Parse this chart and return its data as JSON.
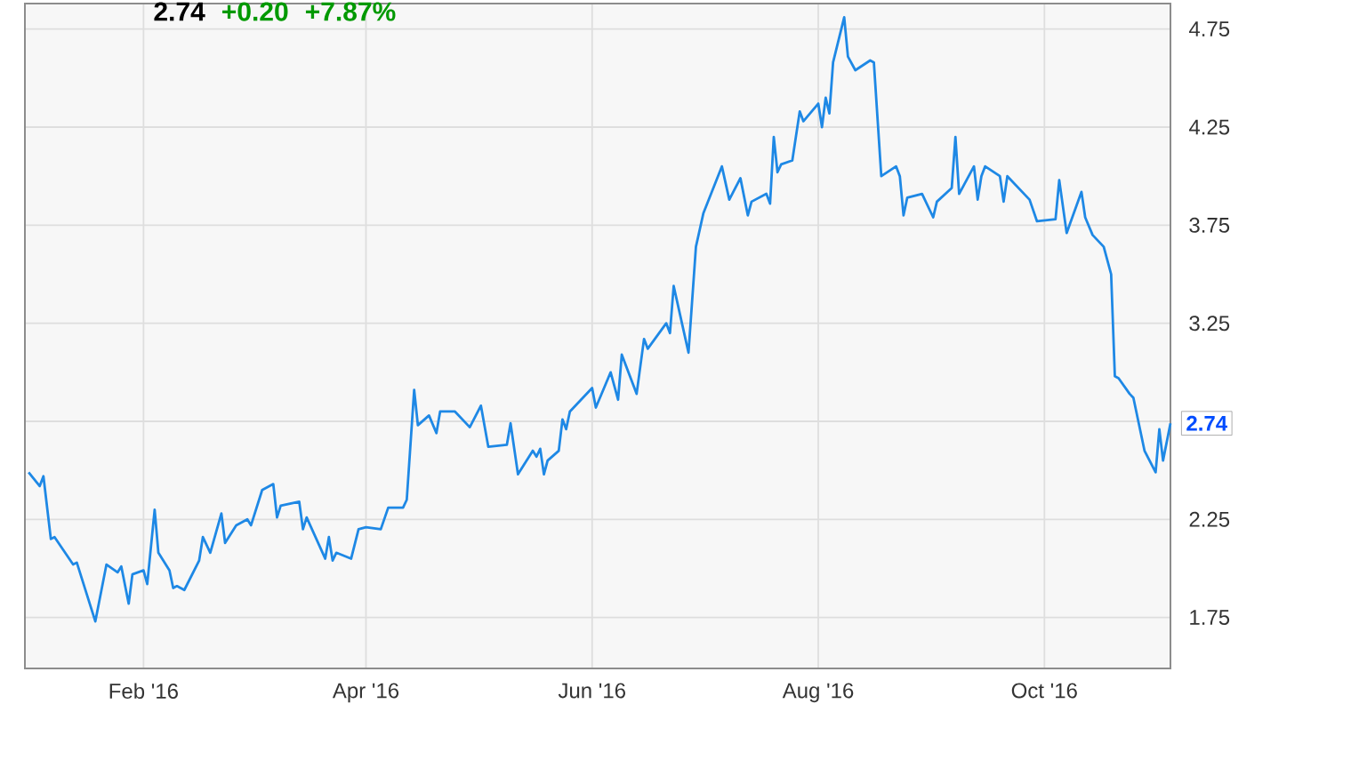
{
  "chart_data": {
    "type": "line",
    "x": [
      "2016-01-01",
      "2016-01-04",
      "2016-01-05",
      "2016-01-07",
      "2016-01-08",
      "2016-01-13",
      "2016-01-14",
      "2016-01-19",
      "2016-01-22",
      "2016-01-25",
      "2016-01-26",
      "2016-01-28",
      "2016-01-29",
      "2016-02-01",
      "2016-02-02",
      "2016-02-04",
      "2016-02-05",
      "2016-02-08",
      "2016-02-09",
      "2016-02-10",
      "2016-02-12",
      "2016-02-16",
      "2016-02-17",
      "2016-02-19",
      "2016-02-22",
      "2016-02-23",
      "2016-02-26",
      "2016-02-29",
      "2016-03-01",
      "2016-03-04",
      "2016-03-07",
      "2016-03-08",
      "2016-03-09",
      "2016-03-14",
      "2016-03-15",
      "2016-03-16",
      "2016-03-21",
      "2016-03-22",
      "2016-03-23",
      "2016-03-24",
      "2016-03-28",
      "2016-03-30",
      "2016-04-01",
      "2016-04-05",
      "2016-04-07",
      "2016-04-11",
      "2016-04-12",
      "2016-04-14",
      "2016-04-15",
      "2016-04-18",
      "2016-04-20",
      "2016-04-21",
      "2016-04-25",
      "2016-04-29",
      "2016-05-02",
      "2016-05-04",
      "2016-05-09",
      "2016-05-10",
      "2016-05-12",
      "2016-05-16",
      "2016-05-17",
      "2016-05-18",
      "2016-05-19",
      "2016-05-20",
      "2016-05-23",
      "2016-05-24",
      "2016-05-25",
      "2016-05-26",
      "2016-06-01",
      "2016-06-02",
      "2016-06-06",
      "2016-06-08",
      "2016-06-09",
      "2016-06-13",
      "2016-06-15",
      "2016-06-16",
      "2016-06-21",
      "2016-06-22",
      "2016-06-23",
      "2016-06-27",
      "2016-06-29",
      "2016-07-01",
      "2016-07-06",
      "2016-07-08",
      "2016-07-11",
      "2016-07-13",
      "2016-07-14",
      "2016-07-18",
      "2016-07-19",
      "2016-07-20",
      "2016-07-21",
      "2016-07-22",
      "2016-07-25",
      "2016-07-27",
      "2016-07-28",
      "2016-08-01",
      "2016-08-02",
      "2016-08-03",
      "2016-08-04",
      "2016-08-05",
      "2016-08-08",
      "2016-08-09",
      "2016-08-11",
      "2016-08-15",
      "2016-08-16",
      "2016-08-18",
      "2016-08-22",
      "2016-08-23",
      "2016-08-24",
      "2016-08-25",
      "2016-08-29",
      "2016-09-01",
      "2016-09-02",
      "2016-09-06",
      "2016-09-07",
      "2016-09-08",
      "2016-09-12",
      "2016-09-13",
      "2016-09-14",
      "2016-09-15",
      "2016-09-19",
      "2016-09-20",
      "2016-09-21",
      "2016-09-27",
      "2016-09-29",
      "2016-10-04",
      "2016-10-05",
      "2016-10-07",
      "2016-10-11",
      "2016-10-12",
      "2016-10-14",
      "2016-10-17",
      "2016-10-19",
      "2016-10-20",
      "2016-10-21",
      "2016-10-24",
      "2016-10-25",
      "2016-10-28",
      "2016-10-31",
      "2016-11-01",
      "2016-11-02",
      "2016-11-04"
    ],
    "series": [
      {
        "color": "#1e88e5",
        "values": [
          2.49,
          2.42,
          2.47,
          2.15,
          2.16,
          2.02,
          2.03,
          1.73,
          2.02,
          1.98,
          2.01,
          1.82,
          1.97,
          1.99,
          1.92,
          2.3,
          2.08,
          1.99,
          1.9,
          1.91,
          1.89,
          2.04,
          2.16,
          2.08,
          2.28,
          2.13,
          2.22,
          2.25,
          2.22,
          2.4,
          2.43,
          2.26,
          2.32,
          2.34,
          2.2,
          2.26,
          2.05,
          2.16,
          2.04,
          2.08,
          2.05,
          2.2,
          2.21,
          2.2,
          2.31,
          2.31,
          2.35,
          2.91,
          2.73,
          2.78,
          2.69,
          2.8,
          2.8,
          2.72,
          2.83,
          2.62,
          2.63,
          2.74,
          2.48,
          2.6,
          2.57,
          2.61,
          2.48,
          2.55,
          2.6,
          2.76,
          2.71,
          2.8,
          2.92,
          2.82,
          3.0,
          2.86,
          3.09,
          2.89,
          3.17,
          3.12,
          3.25,
          3.2,
          3.44,
          3.1,
          3.64,
          3.81,
          4.05,
          3.88,
          3.99,
          3.8,
          3.87,
          3.91,
          3.86,
          4.2,
          4.02,
          4.06,
          4.08,
          4.33,
          4.28,
          4.37,
          4.25,
          4.4,
          4.32,
          4.58,
          4.81,
          4.61,
          4.54,
          4.59,
          4.58,
          4.0,
          4.05,
          4.0,
          3.8,
          3.89,
          3.91,
          3.79,
          3.87,
          3.94,
          4.2,
          3.91,
          4.05,
          3.88,
          4.0,
          4.05,
          4.0,
          3.87,
          4.0,
          3.88,
          3.77,
          3.78,
          3.98,
          3.71,
          3.92,
          3.79,
          3.7,
          3.64,
          3.5,
          2.98,
          2.97,
          2.89,
          2.87,
          2.6,
          2.49,
          2.71,
          2.55,
          2.74
        ]
      }
    ],
    "xlim": [
      "2015-12-31",
      "2016-11-04"
    ],
    "xticks": [
      {
        "value": "2016-02-01",
        "label": "Feb '16"
      },
      {
        "value": "2016-04-01",
        "label": "Apr '16"
      },
      {
        "value": "2016-06-01",
        "label": "Jun '16"
      },
      {
        "value": "2016-08-01",
        "label": "Aug '16"
      },
      {
        "value": "2016-10-01",
        "label": "Oct '16"
      }
    ],
    "ylim": [
      1.49,
      4.88
    ],
    "yticks": [
      1.75,
      2.25,
      {
        "value": 2.75,
        "label": null
      },
      3.25,
      3.75,
      4.25,
      4.75
    ],
    "grid": true,
    "annotations": [
      "2.74",
      "+0.20",
      "+7.87%",
      {
        "text": "2.74",
        "x": "2016-11-04",
        "y": 2.74
      }
    ]
  }
}
